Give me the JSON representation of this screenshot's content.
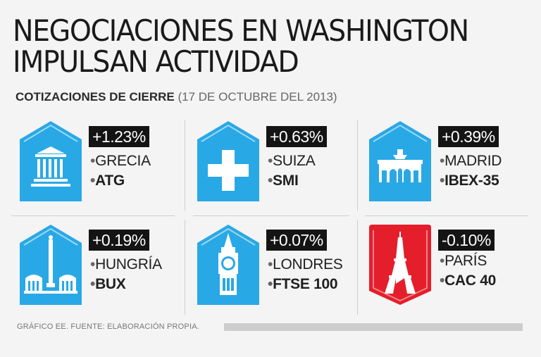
{
  "headline": {
    "line1": "NEGOCIACIONES EN WASHINGTON",
    "line2": "IMPULSAN ACTIVIDAD"
  },
  "subtitle": {
    "label": "COTIZACIONES DE CIERRE",
    "date": "(17 DE OCTUBRE DEL 2013)"
  },
  "markets": [
    {
      "change": "+1.23%",
      "country": "GRECIA",
      "index": "ATG",
      "icon": "greek-temple-icon",
      "color": "#29a8e6"
    },
    {
      "change": "+0.63%",
      "country": "SUIZA",
      "index": "SMI",
      "icon": "swiss-cross-icon",
      "color": "#29a8e6"
    },
    {
      "change": "+0.39%",
      "country": "MADRID",
      "index": "IBEX-35",
      "icon": "puerta-de-alcala-icon",
      "color": "#29a8e6"
    },
    {
      "change": "+0.19%",
      "country": "HUNGRÍA",
      "index": "BUX",
      "icon": "heroes-square-icon",
      "color": "#29a8e6"
    },
    {
      "change": "+0.07%",
      "country": "LONDRES",
      "index": "FTSE 100",
      "icon": "big-ben-icon",
      "color": "#29a8e6"
    },
    {
      "change": "-0.10%",
      "country": "PARÍS",
      "index": "CAC 40",
      "icon": "eiffel-tower-icon",
      "color": "#e41e2b"
    }
  ],
  "dot": "•",
  "footer": {
    "credit": "GRÁFICO EE. FUENTE: ELABORACIÓN PROPIA."
  }
}
